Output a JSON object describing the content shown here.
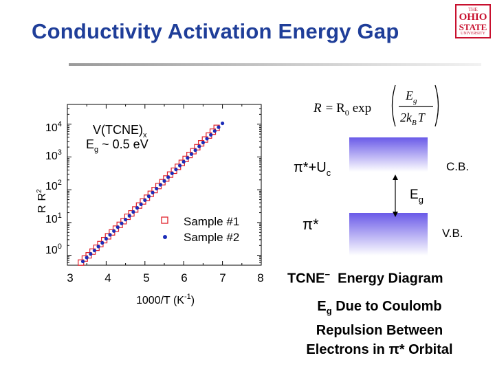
{
  "slide": {
    "title": "Conductivity Activation Energy Gap",
    "logo": {
      "line1": "THE",
      "line2": "OHIO",
      "line3": "STATE",
      "line4": "UNIVERSITY"
    }
  },
  "chart_data": {
    "type": "scatter",
    "xlabel": "1000/T (K",
    "xlabel_sup": "-1",
    "xlabel_end": ")",
    "ylabel": "R",
    "ylabel_sub": "R",
    "ylabel_subsub": "2",
    "yscale": "log",
    "xlim": [
      3,
      8
    ],
    "ylim": [
      0.5,
      40000
    ],
    "x_ticks": [
      "3",
      "4",
      "5",
      "6",
      "7",
      "8"
    ],
    "y_ticks": [
      {
        "base": "10",
        "exp": "0",
        "value": 1
      },
      {
        "base": "10",
        "exp": "1",
        "value": 10
      },
      {
        "base": "10",
        "exp": "2",
        "value": 100
      },
      {
        "base": "10",
        "exp": "3",
        "value": 1000
      },
      {
        "base": "10",
        "exp": "4",
        "value": 10000
      }
    ],
    "annotation": {
      "line1": "V(TCNE)",
      "line1_sub": "x",
      "line2_main": "E",
      "line2_sub": "g",
      "line2_rest": " ~ 0.5 eV"
    },
    "legend_placement": "bottom-right",
    "series": [
      {
        "name": "Sample #1",
        "marker": "open-square",
        "color": "#e0202a",
        "x": [
          3.35,
          3.45,
          3.55,
          3.65,
          3.75,
          3.85,
          3.95,
          4.05,
          4.15,
          4.25,
          4.35,
          4.45,
          4.55,
          4.65,
          4.75,
          4.85,
          4.95,
          5.05,
          5.15,
          5.25,
          5.35,
          5.45,
          5.55,
          5.65,
          5.75,
          5.85,
          5.95,
          6.05,
          6.15,
          6.25,
          6.35,
          6.45,
          6.55,
          6.65,
          6.75,
          6.85
        ],
        "y": [
          0.6,
          0.8,
          1.0,
          1.3,
          1.7,
          2.2,
          2.9,
          3.8,
          5.0,
          6.5,
          8.5,
          11,
          15,
          19,
          25,
          33,
          44,
          57,
          75,
          98,
          130,
          170,
          220,
          290,
          380,
          500,
          660,
          870,
          1150,
          1500,
          1980,
          2600,
          3400,
          4500,
          5900,
          7700
        ]
      },
      {
        "name": "Sample #2",
        "marker": "filled-circle",
        "color": "#1c2db8",
        "x": [
          3.4,
          3.5,
          3.6,
          3.7,
          3.8,
          3.9,
          4.0,
          4.1,
          4.2,
          4.3,
          4.4,
          4.5,
          4.6,
          4.7,
          4.8,
          4.9,
          5.0,
          5.1,
          5.2,
          5.3,
          5.4,
          5.5,
          5.6,
          5.7,
          5.8,
          5.9,
          6.0,
          6.1,
          6.2,
          6.3,
          6.4,
          6.5,
          6.6,
          6.7,
          6.8,
          6.9,
          7.0
        ],
        "y": [
          0.65,
          0.85,
          1.1,
          1.4,
          1.85,
          2.4,
          3.2,
          4.2,
          5.5,
          7.2,
          9.4,
          12.3,
          16,
          21,
          28,
          36,
          48,
          63,
          82,
          108,
          141,
          185,
          242,
          317,
          415,
          545,
          713,
          935,
          1225,
          1600,
          2100,
          2750,
          3600,
          4720,
          6180,
          8100,
          10600
        ]
      }
    ]
  },
  "diagram": {
    "formula": {
      "lhs": "R",
      "eq": "= R",
      "r0_sub": "0",
      "func": "exp",
      "num": "E",
      "num_sub": "g",
      "den": "2k",
      "den_sub": "B",
      "den_end": "T"
    },
    "upper_label": "π*+U",
    "upper_label_sub": "c",
    "lower_label": "π*",
    "cb_label": "C.B.",
    "vb_label": "V.B.",
    "gap_label": "E",
    "gap_label_sub": "g",
    "caption_main": "TCNE",
    "caption_sup": "−",
    "caption_rest": "Energy Diagram",
    "note_line1_a": "E",
    "note_line1_sub": "g",
    "note_line1_b": " Due to Coulomb",
    "note_line2": "Repulsion Between",
    "note_line3": "Electrons in π* Orbital",
    "band_color": "#6a5ae8"
  }
}
